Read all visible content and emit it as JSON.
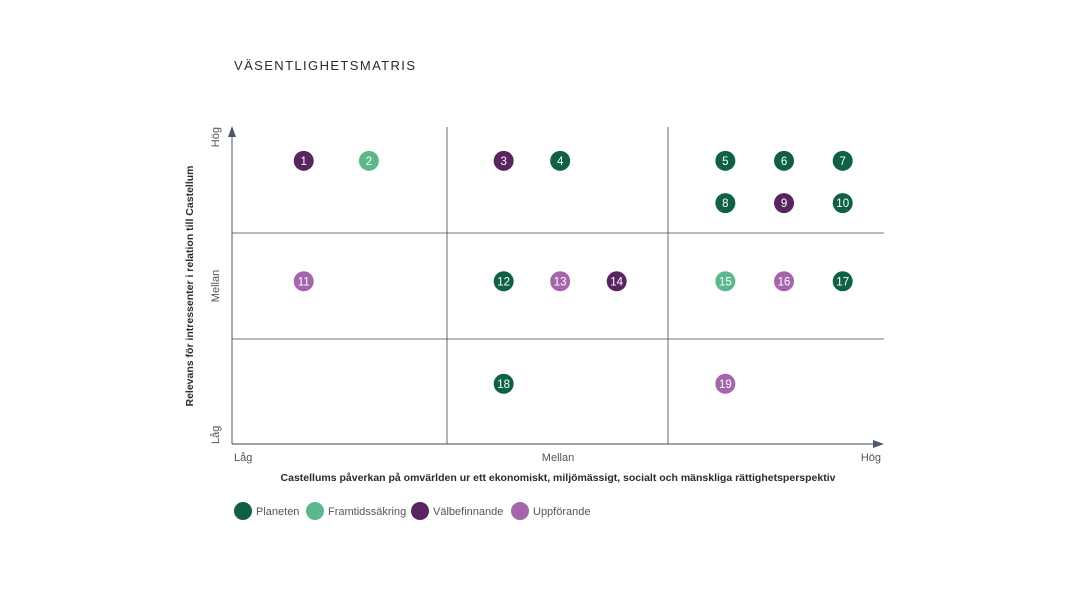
{
  "chart_data": {
    "type": "scatter",
    "title": "VÄSENTLIGHETSMATRIS",
    "xlabel": "Castellums påverkan på omvärlden ur ett ekonomiskt, miljömässigt, socialt och mänskliga rättighetsperspektiv",
    "ylabel": "Relevans för intressenter i relation till Castellum",
    "x_ticks": [
      "Låg",
      "Mellan",
      "Hög"
    ],
    "y_ticks": [
      "Låg",
      "Mellan",
      "Hög"
    ],
    "xlim": [
      0,
      3
    ],
    "ylim": [
      0,
      3
    ],
    "grid": true,
    "legend_position": "bottom-left",
    "categories": [
      {
        "name": "Planeten",
        "color": "#0e6142"
      },
      {
        "name": "Framtidssäkring",
        "color": "#5ab88a"
      },
      {
        "name": "Välbefinnande",
        "color": "#5a2462"
      },
      {
        "name": "Uppförande",
        "color": "#a565ad"
      }
    ],
    "points": [
      {
        "label": "1",
        "x": 0.33,
        "y": 2.68,
        "category": "Välbefinnande"
      },
      {
        "label": "2",
        "x": 0.63,
        "y": 2.68,
        "category": "Framtidssäkring"
      },
      {
        "label": "3",
        "x": 1.25,
        "y": 2.68,
        "category": "Välbefinnande"
      },
      {
        "label": "4",
        "x": 1.51,
        "y": 2.68,
        "category": "Planeten"
      },
      {
        "label": "5",
        "x": 2.27,
        "y": 2.68,
        "category": "Planeten"
      },
      {
        "label": "6",
        "x": 2.54,
        "y": 2.68,
        "category": "Planeten"
      },
      {
        "label": "7",
        "x": 2.81,
        "y": 2.68,
        "category": "Planeten"
      },
      {
        "label": "8",
        "x": 2.27,
        "y": 2.28,
        "category": "Planeten"
      },
      {
        "label": "9",
        "x": 2.54,
        "y": 2.28,
        "category": "Välbefinnande"
      },
      {
        "label": "10",
        "x": 2.81,
        "y": 2.28,
        "category": "Planeten"
      },
      {
        "label": "11",
        "x": 0.33,
        "y": 1.54,
        "category": "Uppförande"
      },
      {
        "label": "12",
        "x": 1.25,
        "y": 1.54,
        "category": "Planeten"
      },
      {
        "label": "13",
        "x": 1.51,
        "y": 1.54,
        "category": "Uppförande"
      },
      {
        "label": "14",
        "x": 1.77,
        "y": 1.54,
        "category": "Välbefinnande"
      },
      {
        "label": "15",
        "x": 2.27,
        "y": 1.54,
        "category": "Framtidssäkring"
      },
      {
        "label": "16",
        "x": 2.54,
        "y": 1.54,
        "category": "Uppförande"
      },
      {
        "label": "17",
        "x": 2.81,
        "y": 1.54,
        "category": "Planeten"
      },
      {
        "label": "18",
        "x": 1.25,
        "y": 0.57,
        "category": "Planeten"
      },
      {
        "label": "19",
        "x": 2.27,
        "y": 0.57,
        "category": "Uppförande"
      }
    ]
  }
}
